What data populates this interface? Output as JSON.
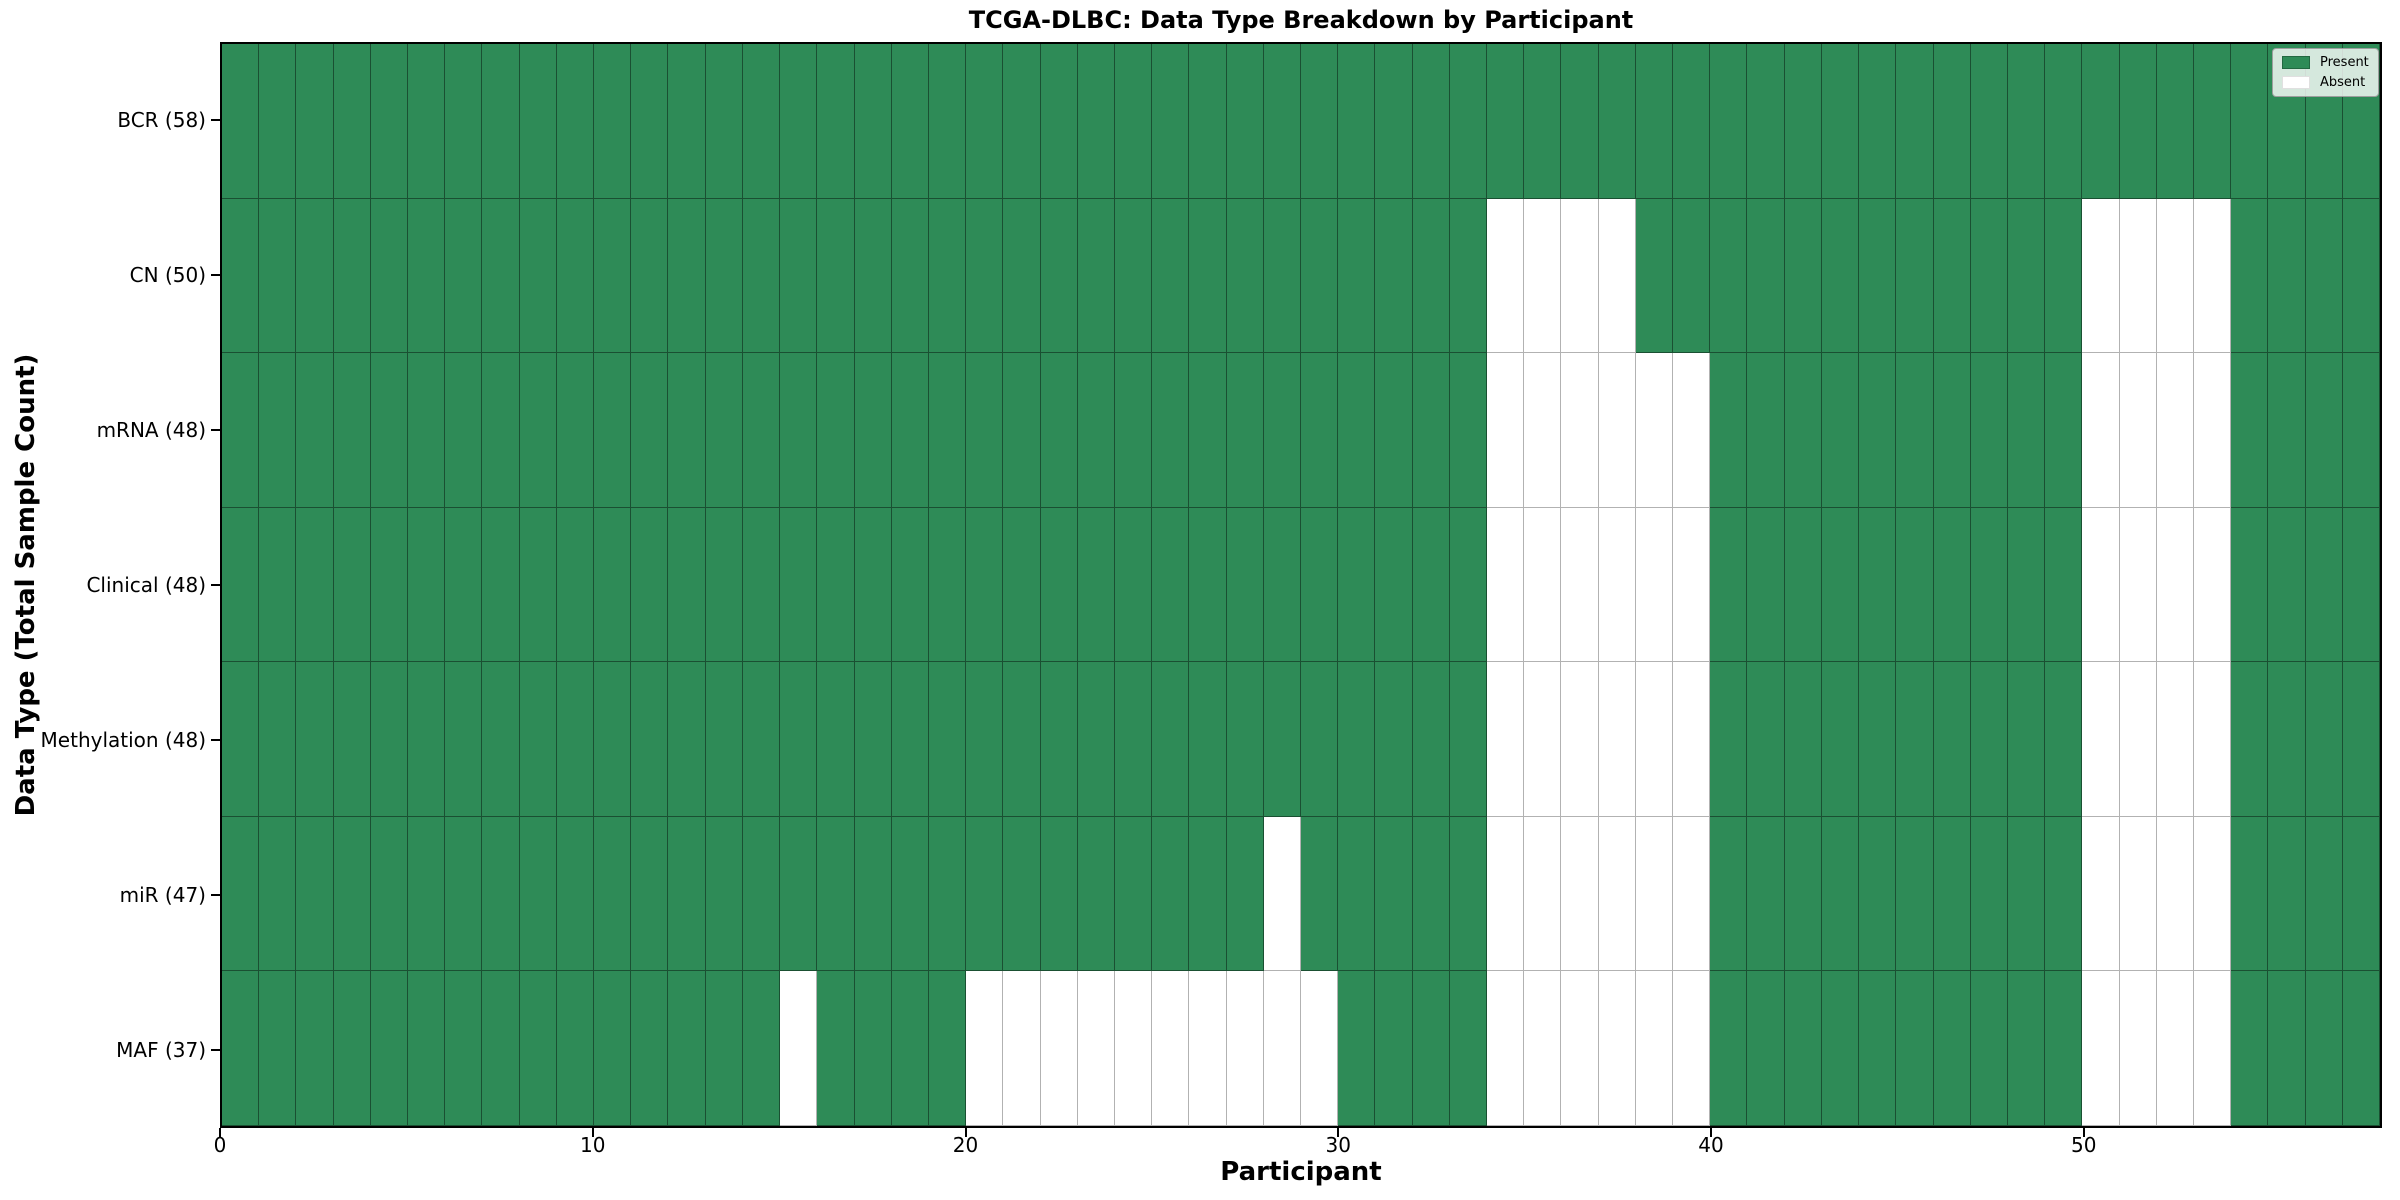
{
  "chart_data": {
    "type": "heatmap",
    "title": "TCGA-DLBC: Data Type Breakdown by Participant",
    "xlabel": "Participant",
    "ylabel": "Data Type (Total Sample Count)",
    "n_participants": 58,
    "x_range": [
      0,
      58
    ],
    "x_ticks": [
      0,
      10,
      20,
      30,
      40,
      50
    ],
    "grid": "cell-edges",
    "legend_position": "upper right",
    "legend": [
      {
        "label": "Present",
        "color": "#2e8b57"
      },
      {
        "label": "Absent",
        "color": "#ffffff"
      }
    ],
    "colors": {
      "present": "#2e8b57",
      "absent": "#ffffff",
      "cell_edge": "rgba(0,0,0,0.42)",
      "axes_border": "#000000"
    },
    "rows": [
      {
        "label": "BCR (58)",
        "data_type": "BCR",
        "present_count": 58,
        "absent_participants": []
      },
      {
        "label": "CN (50)",
        "data_type": "CN",
        "present_count": 50,
        "absent_participants": [
          34,
          35,
          36,
          37,
          50,
          51,
          52,
          53
        ]
      },
      {
        "label": "mRNA (48)",
        "data_type": "mRNA",
        "present_count": 48,
        "absent_participants": [
          34,
          35,
          36,
          37,
          38,
          39,
          50,
          51,
          52,
          53
        ]
      },
      {
        "label": "Clinical (48)",
        "data_type": "Clinical",
        "present_count": 48,
        "absent_participants": [
          34,
          35,
          36,
          37,
          38,
          39,
          50,
          51,
          52,
          53
        ]
      },
      {
        "label": "Methylation (48)",
        "data_type": "Methylation",
        "present_count": 48,
        "absent_participants": [
          34,
          35,
          36,
          37,
          38,
          39,
          50,
          51,
          52,
          53
        ]
      },
      {
        "label": "miR (47)",
        "data_type": "miR",
        "present_count": 47,
        "absent_participants": [
          28,
          34,
          35,
          36,
          37,
          38,
          39,
          50,
          51,
          52,
          53
        ]
      },
      {
        "label": "MAF (37)",
        "data_type": "MAF",
        "present_count": 37,
        "absent_participants": [
          15,
          20,
          21,
          22,
          23,
          24,
          25,
          26,
          27,
          28,
          29,
          34,
          35,
          36,
          37,
          38,
          39,
          50,
          51,
          52,
          53
        ]
      }
    ]
  }
}
